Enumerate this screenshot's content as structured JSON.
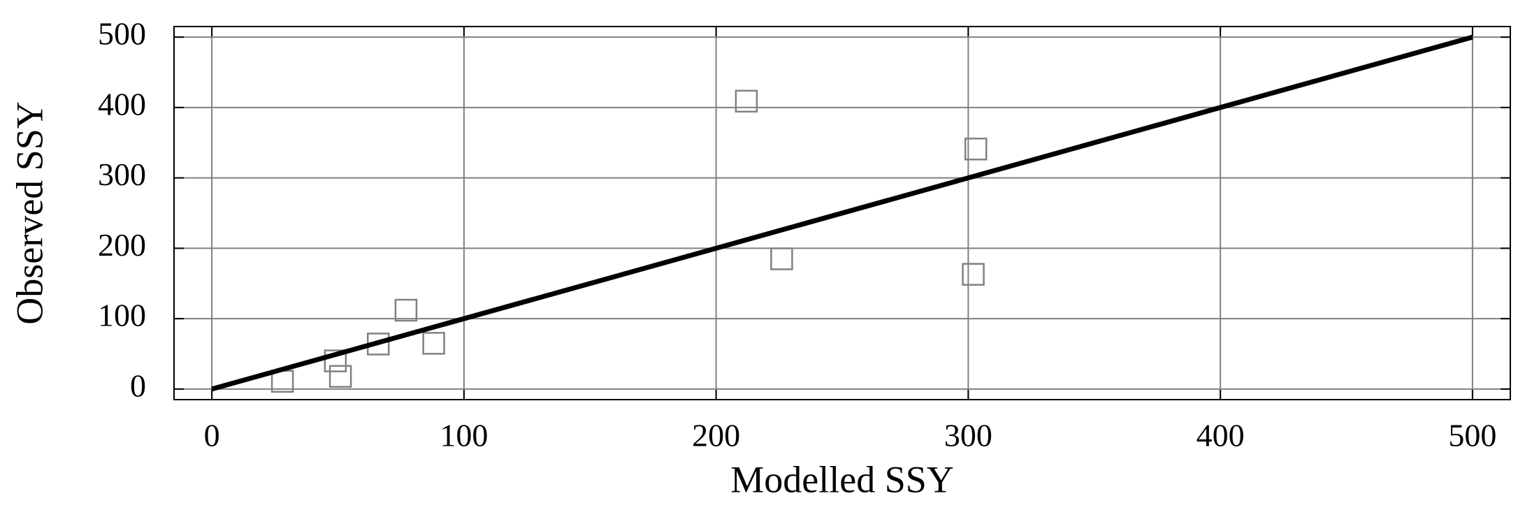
{
  "chart_data": {
    "type": "scatter",
    "x_label": "Modelled SSY",
    "y_label": "Observed SSY",
    "series": [
      {
        "type": "scatter",
        "color": "#808080",
        "x": [
          28,
          49,
          51,
          66,
          77,
          88,
          212,
          226,
          303,
          302
        ],
        "values": [
          11,
          40,
          18,
          64,
          112,
          65,
          409,
          185,
          341,
          163
        ]
      },
      {
        "type": "line",
        "color": "#000000",
        "x": [
          0,
          500
        ],
        "values": [
          0,
          500
        ]
      }
    ],
    "xlim": [
      -15,
      515
    ],
    "ylim": [
      -15,
      515
    ],
    "xticks": [
      0,
      100,
      200,
      300,
      400,
      500
    ],
    "yticks": [
      0,
      100,
      200,
      300,
      400,
      500
    ],
    "grid": true
  }
}
